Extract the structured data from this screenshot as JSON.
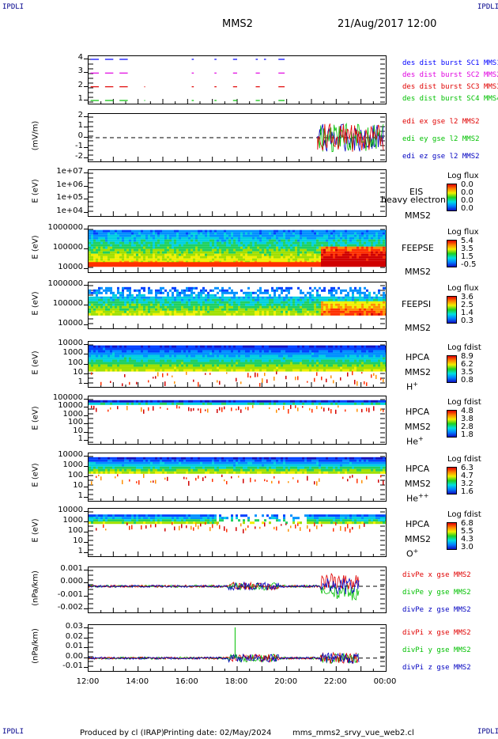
{
  "header": {
    "corner": "IPDLI",
    "title": "MMS2",
    "date": "21/Aug/2017 12:00"
  },
  "x_axis": {
    "ticks": [
      "12:00",
      "14:00",
      "16:00",
      "18:00",
      "20:00",
      "22:00",
      "00:00"
    ]
  },
  "footer": {
    "produced": "Produced by cl (IRAP)",
    "printed": "Printing date: 02/May/2024",
    "file": "mms_mms2_srvy_vue_web2.cl"
  },
  "colors": {
    "red": "#e00000",
    "green": "#00c000",
    "blue": "#0000c0",
    "magenta": "#e000e0",
    "dashblue": "#0000ff"
  },
  "panels": {
    "burst": {
      "yticks": [
        "4",
        "3",
        "2",
        "1"
      ],
      "legend": [
        "des dist burst SC1 MMS1",
        "des dist burst SC2 MMS2",
        "des dist burst SC3 MMS3",
        "des dist burst SC4 MMS4"
      ]
    },
    "edi": {
      "ylabel": "(mV/m)",
      "yticks": [
        "2",
        "1",
        "0",
        "-1",
        "-2"
      ],
      "legend": [
        "edi ex gse l2 MMS2",
        "edi ey gse l2 MMS2",
        "edi ez gse l2 MMS2"
      ]
    },
    "eis": {
      "ylabel": "E (eV)",
      "yticks": [
        "1e+07",
        "1e+06",
        "1e+05",
        "1e+04"
      ],
      "name1": "EIS",
      "name2": "MMS2",
      "overlay": "heavy electron to",
      "cbtitle": "Log flux",
      "cbticks": [
        "0.0",
        "0.0",
        "0.0",
        "0.0"
      ]
    },
    "feepse": {
      "ylabel": "E (eV)",
      "yticks": [
        "1000000",
        "100000",
        "10000"
      ],
      "name1": "FEEPSE",
      "name2": "MMS2",
      "cbtitle": "Log flux",
      "cbticks": [
        "5.4",
        "3.5",
        "1.5",
        "-0.5"
      ]
    },
    "feepsi": {
      "ylabel": "E (eV)",
      "yticks": [
        "1000000",
        "100000",
        "10000"
      ],
      "name1": "FEEPSI",
      "name2": "MMS2",
      "cbtitle": "Log flux",
      "cbticks": [
        "3.6",
        "2.5",
        "1.4",
        "0.3"
      ]
    },
    "hpca_h": {
      "ylabel": "E (eV)",
      "yticks": [
        "10000",
        "1000",
        "100",
        "10",
        "1"
      ],
      "name1": "HPCA",
      "name2": "MMS2",
      "species": "H",
      "charge": "+",
      "cbtitle": "Log fdist",
      "cbticks": [
        "8.9",
        "6.2",
        "3.5",
        "0.8"
      ]
    },
    "hpca_he": {
      "ylabel": "E (eV)",
      "yticks": [
        "100000",
        "10000",
        "1000",
        "100",
        "10",
        "1"
      ],
      "name1": "HPCA",
      "name2": "MMS2",
      "species": "He",
      "charge": "+",
      "cbtitle": "Log fdist",
      "cbticks": [
        "4.8",
        "3.8",
        "2.8",
        "1.8"
      ]
    },
    "hpca_he2": {
      "ylabel": "E (eV)",
      "yticks": [
        "10000",
        "1000",
        "100",
        "10",
        "1"
      ],
      "name1": "HPCA",
      "name2": "MMS2",
      "species": "He",
      "charge": "++",
      "cbtitle": "Log fdist",
      "cbticks": [
        "6.3",
        "4.7",
        "3.2",
        "1.6"
      ]
    },
    "hpca_o": {
      "ylabel": "E (eV)",
      "yticks": [
        "10000",
        "1000",
        "100",
        "10",
        "1"
      ],
      "name1": "HPCA",
      "name2": "MMS2",
      "species": "O",
      "charge": "+",
      "cbtitle": "Log fdist",
      "cbticks": [
        "6.8",
        "5.5",
        "4.3",
        "3.0"
      ]
    },
    "divpe": {
      "ylabel": "(nPa/km)",
      "yticks": [
        "0.001",
        "0.000",
        "-0.001",
        "-0.002"
      ],
      "legend": [
        "divPe x gse MMS2",
        "divPe y gse MMS2",
        "divPe z gse MMS2"
      ]
    },
    "divpi": {
      "ylabel": "(nPa/km)",
      "yticks": [
        "0.03",
        "0.02",
        "0.01",
        "0.00",
        "-0.01"
      ],
      "legend": [
        "divPi x gse MMS2",
        "divPi y gse MMS2",
        "divPi z gse MMS2"
      ]
    }
  },
  "chart_data": {
    "type": "line",
    "title": "MMS2",
    "x_range": [
      "12:00",
      "00:00"
    ],
    "panels": [
      {
        "name": "des dist burst",
        "y_range": [
          0.5,
          4.5
        ],
        "series": [
          {
            "name": "des dist burst SC1 MMS1",
            "y": 4,
            "segments": [
              [
                "12:05",
                "12:25"
              ],
              [
                "12:40",
                "13:00"
              ],
              [
                "13:15",
                "13:35"
              ],
              [
                "16:10",
                "16:15"
              ],
              [
                "17:05",
                "17:10"
              ],
              [
                "17:50",
                "18:00"
              ],
              [
                "18:45",
                "18:50"
              ],
              [
                "19:05",
                "19:10"
              ],
              [
                "19:40",
                "19:55"
              ]
            ]
          },
          {
            "name": "des dist burst SC2 MMS2",
            "y": 3,
            "segments": [
              [
                "12:05",
                "12:25"
              ],
              [
                "12:40",
                "13:00"
              ],
              [
                "13:15",
                "13:35"
              ],
              [
                "16:10",
                "16:15"
              ],
              [
                "17:05",
                "17:10"
              ],
              [
                "17:50",
                "18:00"
              ],
              [
                "18:45",
                "18:55"
              ],
              [
                "19:40",
                "19:55"
              ]
            ]
          },
          {
            "name": "des dist burst SC3 MMS3",
            "y": 2,
            "segments": [
              [
                "12:05",
                "12:25"
              ],
              [
                "12:40",
                "13:00"
              ],
              [
                "13:15",
                "13:35"
              ],
              [
                "14:15",
                "14:17"
              ],
              [
                "16:10",
                "16:15"
              ],
              [
                "17:05",
                "17:10"
              ],
              [
                "17:50",
                "18:00"
              ],
              [
                "18:45",
                "18:55"
              ],
              [
                "19:40",
                "19:55"
              ]
            ]
          },
          {
            "name": "des dist burst SC4 MMS4",
            "y": 1,
            "segments": [
              [
                "12:05",
                "12:25"
              ],
              [
                "12:40",
                "13:00"
              ],
              [
                "13:15",
                "13:35"
              ],
              [
                "14:15",
                "14:17"
              ],
              [
                "16:10",
                "16:15"
              ],
              [
                "17:05",
                "17:10"
              ],
              [
                "17:50",
                "18:00"
              ],
              [
                "18:45",
                "18:55"
              ],
              [
                "19:40",
                "19:55"
              ]
            ]
          }
        ]
      },
      {
        "name": "edi",
        "y_range": [
          -3,
          3
        ],
        "series": [
          {
            "name": "edi ex gse l2 MMS2",
            "approx_range": [
              -2,
              2
            ],
            "active": [
              "21:15",
              "23:55"
            ]
          },
          {
            "name": "edi ey gse l2 MMS2",
            "approx_range": [
              -2,
              2
            ],
            "active": [
              "21:15",
              "23:55"
            ]
          },
          {
            "name": "edi ez gse l2 MMS2",
            "approx_range": [
              -2,
              2
            ],
            "active": [
              "21:15",
              "23:55"
            ]
          }
        ]
      },
      {
        "name": "EIS",
        "type": "heatmap",
        "y_range": [
          10000,
          10000000
        ],
        "y_scale": "log",
        "data": "empty"
      },
      {
        "name": "FEEPSE",
        "type": "heatmap",
        "y_range": [
          10000,
          1000000
        ],
        "y_scale": "log",
        "cb_range": [
          -0.5,
          5.4
        ]
      },
      {
        "name": "FEEPSI",
        "type": "heatmap",
        "y_range": [
          10000,
          1000000
        ],
        "y_scale": "log",
        "cb_range": [
          0.3,
          3.6
        ]
      },
      {
        "name": "HPCA H+",
        "type": "heatmap",
        "y_range": [
          1,
          30000
        ],
        "y_scale": "log",
        "cb_range": [
          0.8,
          8.9
        ]
      },
      {
        "name": "HPCA He+",
        "type": "heatmap",
        "y_range": [
          1,
          100000
        ],
        "y_scale": "log",
        "cb_range": [
          1.8,
          4.8
        ]
      },
      {
        "name": "HPCA He++",
        "type": "heatmap",
        "y_range": [
          1,
          30000
        ],
        "y_scale": "log",
        "cb_range": [
          1.6,
          6.3
        ]
      },
      {
        "name": "HPCA O+",
        "type": "heatmap",
        "y_range": [
          1,
          30000
        ],
        "y_scale": "log",
        "cb_range": [
          3.0,
          6.8
        ]
      },
      {
        "name": "divPe",
        "y_range": [
          -0.002,
          0.0015
        ],
        "series": [
          {
            "name": "divPe x gse MMS2",
            "approx_range": [
              -0.0002,
              0.0006
            ]
          },
          {
            "name": "divPe y gse MMS2",
            "approx_range": [
              -0.002,
              0.0002
            ]
          },
          {
            "name": "divPe z gse MMS2",
            "approx_range": [
              -0.0003,
              0.0003
            ]
          }
        ]
      },
      {
        "name": "divPi",
        "y_range": [
          -0.015,
          0.032
        ],
        "series": [
          {
            "name": "divPi x gse MMS2",
            "approx_range": [
              -0.002,
              0.003
            ]
          },
          {
            "name": "divPi y gse MMS2",
            "approx_range": [
              -0.002,
              0.025
            ]
          },
          {
            "name": "divPi z gse MMS2",
            "approx_range": [
              -0.003,
              0.003
            ]
          }
        ]
      }
    ]
  }
}
